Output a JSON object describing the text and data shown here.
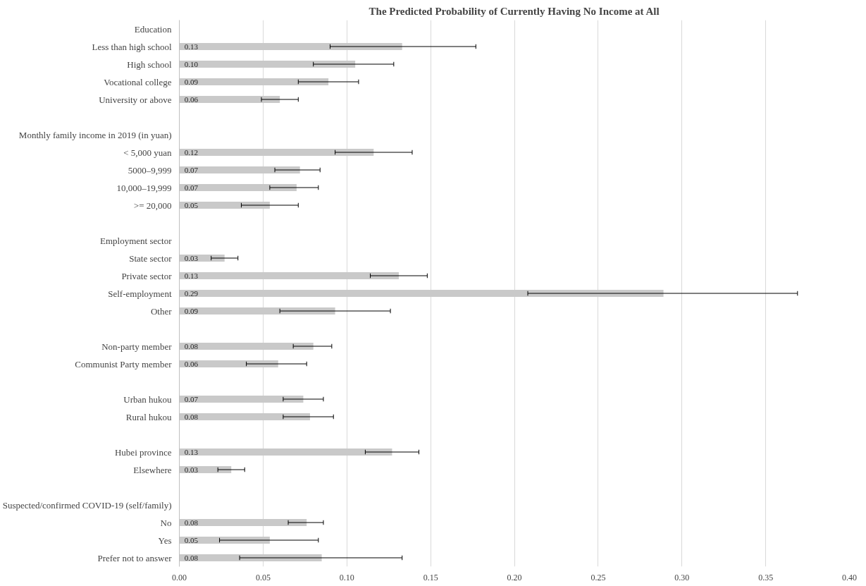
{
  "chart_data": {
    "type": "bar",
    "orientation": "horizontal",
    "title": "The Predicted Probability of Currently Having No Income at All",
    "categories": [
      "Education",
      "Less than high school",
      "High school",
      "Vocational college",
      "University or above",
      null,
      "Monthly family income in 2019 (in yuan)",
      "< 5,000 yuan",
      "5000–9,999",
      "10,000–19,999",
      ">= 20,000",
      null,
      "Employment sector",
      "State sector",
      "Private sector",
      "Self-employment",
      "Other",
      null,
      "Non-party member",
      "Communist Party member",
      null,
      "Urban hukou",
      "Rural hukou",
      null,
      "Hubei province",
      "Elsewhere",
      null,
      "Suspected/confirmed COVID-19 (self/family)",
      "No",
      "Yes",
      "Prefer not to answer"
    ],
    "values": [
      null,
      0.133,
      0.105,
      0.089,
      0.06,
      null,
      null,
      0.116,
      0.072,
      0.07,
      0.054,
      null,
      null,
      0.027,
      0.131,
      0.289,
      0.093,
      null,
      0.08,
      0.059,
      null,
      0.074,
      0.078,
      null,
      0.127,
      0.031,
      null,
      null,
      0.076,
      0.054,
      0.085
    ],
    "errors": [
      null,
      [
        0.09,
        0.177
      ],
      [
        0.08,
        0.128
      ],
      [
        0.071,
        0.107
      ],
      [
        0.049,
        0.071
      ],
      null,
      null,
      [
        0.093,
        0.139
      ],
      [
        0.057,
        0.084
      ],
      [
        0.054,
        0.083
      ],
      [
        0.037,
        0.071
      ],
      null,
      null,
      [
        0.019,
        0.035
      ],
      [
        0.114,
        0.148
      ],
      [
        0.208,
        0.369
      ],
      [
        0.06,
        0.126
      ],
      null,
      [
        0.068,
        0.091
      ],
      [
        0.04,
        0.076
      ],
      null,
      [
        0.062,
        0.086
      ],
      [
        0.062,
        0.092
      ],
      null,
      [
        0.111,
        0.143
      ],
      [
        0.023,
        0.039
      ],
      null,
      null,
      [
        0.065,
        0.086
      ],
      [
        0.024,
        0.083
      ],
      [
        0.036,
        0.133
      ]
    ],
    "value_labels": [
      null,
      "0.13",
      "0.10",
      "0.09",
      "0.06",
      null,
      null,
      "0.12",
      "0.07",
      "0.07",
      "0.05",
      null,
      null,
      "0.03",
      "0.13",
      "0.29",
      "0.09",
      null,
      "0.08",
      "0.06",
      null,
      "0.07",
      "0.08",
      null,
      "0.13",
      "0.03",
      null,
      null,
      "0.08",
      "0.05",
      "0.08"
    ],
    "color": "#c9c9c9",
    "xlim": [
      0,
      0.4
    ],
    "xticks": [
      {
        "value": 0,
        "label": "0.00"
      },
      {
        "value": 0.05,
        "label": "0.05"
      },
      {
        "value": 0.1,
        "label": "0.10"
      },
      {
        "value": 0.15,
        "label": "0.15"
      },
      {
        "value": 0.2,
        "label": "0.20"
      },
      {
        "value": 0.25,
        "label": "0.25"
      },
      {
        "value": 0.3,
        "label": "0.30"
      },
      {
        "value": 0.35,
        "label": "0.35"
      },
      {
        "value": 0.4,
        "label": "0.40"
      }
    ],
    "grid": "x"
  }
}
